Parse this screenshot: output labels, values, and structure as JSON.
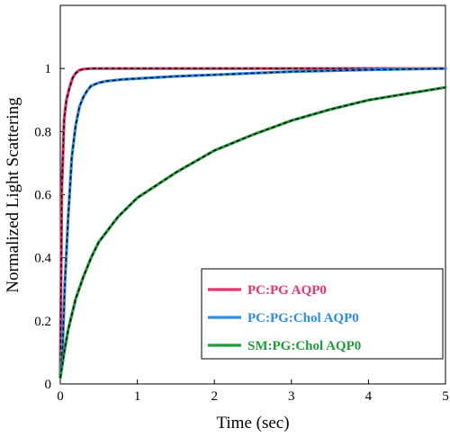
{
  "chart_data": {
    "type": "line",
    "xlabel": "Time (sec)",
    "ylabel": "Normalized Light Scattering",
    "xlim": [
      0,
      5
    ],
    "ylim": [
      0,
      1.2
    ],
    "xticks": [
      "0",
      "1",
      "2",
      "3",
      "4",
      "5"
    ],
    "yticks": [
      "0",
      "0.2",
      "0.4",
      "0.6",
      "0.8",
      "1"
    ],
    "grid": false,
    "legend_position": "bottom-right",
    "fit_line_style": "black dashed",
    "series": [
      {
        "name": "PC:PG  AQP0",
        "color": "#e8336e",
        "x": [
          0,
          0.02,
          0.05,
          0.08,
          0.12,
          0.16,
          0.2,
          0.25,
          0.3,
          0.4,
          0.5,
          0.75,
          1,
          1.5,
          2,
          2.5,
          3,
          3.5,
          4,
          4.5,
          5
        ],
        "y": [
          0.03,
          0.62,
          0.84,
          0.9,
          0.94,
          0.97,
          0.985,
          0.995,
          0.998,
          1.0,
          1.0,
          1.0,
          1.0,
          1.0,
          1.0,
          1.0,
          1.0,
          1.0,
          1.0,
          1.0,
          1.0
        ]
      },
      {
        "name": "PC:PG:Chol  AQP0",
        "color": "#2a8ee8",
        "x": [
          0,
          0.03,
          0.06,
          0.1,
          0.15,
          0.2,
          0.25,
          0.3,
          0.35,
          0.4,
          0.5,
          0.6,
          0.8,
          1,
          1.5,
          2,
          2.5,
          3,
          3.5,
          4,
          4.5,
          5
        ],
        "y": [
          0.03,
          0.12,
          0.32,
          0.52,
          0.72,
          0.82,
          0.88,
          0.91,
          0.93,
          0.945,
          0.955,
          0.96,
          0.965,
          0.968,
          0.975,
          0.98,
          0.985,
          0.99,
          0.993,
          0.996,
          0.998,
          1.0
        ]
      },
      {
        "name": "SM:PG:Chol  AQP0",
        "color": "#1f9a3a",
        "x": [
          0,
          0.05,
          0.1,
          0.2,
          0.3,
          0.4,
          0.5,
          0.75,
          1,
          1.5,
          2,
          2.5,
          3,
          3.5,
          4,
          4.5,
          5
        ],
        "y": [
          0.02,
          0.1,
          0.17,
          0.27,
          0.34,
          0.4,
          0.45,
          0.53,
          0.59,
          0.67,
          0.74,
          0.79,
          0.835,
          0.87,
          0.9,
          0.92,
          0.94
        ]
      }
    ]
  }
}
